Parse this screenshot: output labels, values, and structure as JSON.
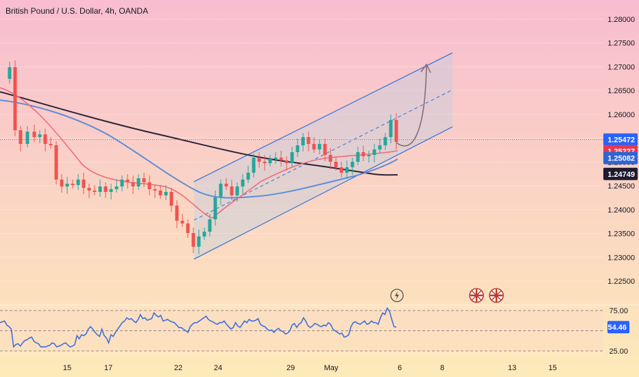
{
  "title": "British Pound / U.S. Dollar, 4h, OANDA",
  "colors": {
    "bg_top": "#f8bdd0",
    "bg_bottom": "#fde9b8",
    "up": "#26a69a",
    "down": "#ef5350",
    "ema_short": "#ef6c7a",
    "ema_mid": "#5b8fd9",
    "ema_long": "#2a2438",
    "channel": "#3c78d8",
    "rsi": "#3c6fe0",
    "arrow": "#8a6a78"
  },
  "price_axis": {
    "ticks": [
      "1.28000",
      "1.27500",
      "1.27000",
      "1.26500",
      "1.26000",
      "1.25500",
      "1.25000",
      "1.24500",
      "1.24000",
      "1.23500",
      "1.23000",
      "1.22500"
    ],
    "range": [
      1.2213,
      1.2821
    ]
  },
  "price_tags": [
    {
      "label": "1.25472",
      "value": 1.25472,
      "color": "#2962ff"
    },
    {
      "label": "1.25227",
      "value": 1.25227,
      "color": "#e53950"
    },
    {
      "label": "1.25082",
      "value": 1.25082,
      "color": "#2e64d6"
    },
    {
      "label": "1.24749",
      "value": 1.24749,
      "color": "#1e1b2e"
    }
  ],
  "time_axis": [
    "15",
    "17",
    "22",
    "24",
    "29",
    "May",
    "6",
    "8",
    "13",
    "15"
  ],
  "rsi": {
    "levels": [
      "75.00",
      "25.00"
    ],
    "current_label": "54.46",
    "current": 54.46,
    "values": [
      60,
      61,
      62,
      57,
      55,
      52,
      30,
      33,
      34,
      31,
      35,
      38,
      39,
      41,
      42,
      37,
      35,
      34,
      30,
      30,
      30,
      31,
      32,
      35,
      34,
      30,
      31,
      32,
      34,
      35,
      32,
      30,
      31,
      33,
      44,
      40,
      45,
      44,
      46,
      52,
      55,
      52,
      48,
      45,
      43,
      52,
      44,
      41,
      35,
      45,
      43,
      48,
      52,
      56,
      60,
      62,
      66,
      64,
      65,
      62,
      60,
      64,
      70,
      65,
      66,
      63,
      64,
      65,
      72,
      69,
      67,
      69,
      62,
      63,
      64,
      62,
      61,
      60,
      57,
      54,
      54,
      52,
      50,
      48,
      55,
      58,
      60,
      60,
      62,
      64,
      66,
      68,
      64,
      62,
      61,
      59,
      58,
      60,
      60,
      62,
      58,
      55,
      52,
      54,
      60,
      56,
      54,
      58,
      62,
      60,
      64,
      62,
      62,
      63,
      65,
      58,
      56,
      55,
      52,
      50,
      51,
      48,
      51,
      53,
      50,
      49,
      46,
      47,
      50,
      57,
      59,
      54,
      58,
      60,
      66,
      62,
      56,
      54,
      56,
      59,
      58,
      56,
      55,
      57,
      56,
      60,
      58,
      52,
      50,
      48,
      46,
      47,
      42,
      43,
      45,
      55,
      60,
      61,
      59,
      58,
      60,
      62,
      58,
      59,
      62,
      60,
      60,
      58,
      66,
      72,
      70,
      78,
      74,
      64,
      55,
      54.46
    ]
  },
  "events": [
    {
      "icon": "lightning-icon"
    },
    {
      "icon": "uk-flag-icon"
    },
    {
      "icon": "uk-flag-icon"
    }
  ],
  "chart_data": {
    "type": "candlestick",
    "symbol": "GBPUSD",
    "timeframe": "4h",
    "source": "OANDA",
    "last_price": 1.25472,
    "indicators": [
      {
        "name": "MA short",
        "last": 1.25227
      },
      {
        "name": "MA mid",
        "last": 1.25082
      },
      {
        "name": "MA long",
        "last": 1.24749
      },
      {
        "name": "RSI",
        "last": 54.46
      }
    ],
    "channel": {
      "lower_start": [
        22,
        1.2298
      ],
      "lower_end": [
        36,
        1.2573
      ],
      "upper_start": [
        22,
        1.2465
      ],
      "upper_end": [
        36,
        1.2727
      ]
    },
    "projection_target": 1.27
  }
}
